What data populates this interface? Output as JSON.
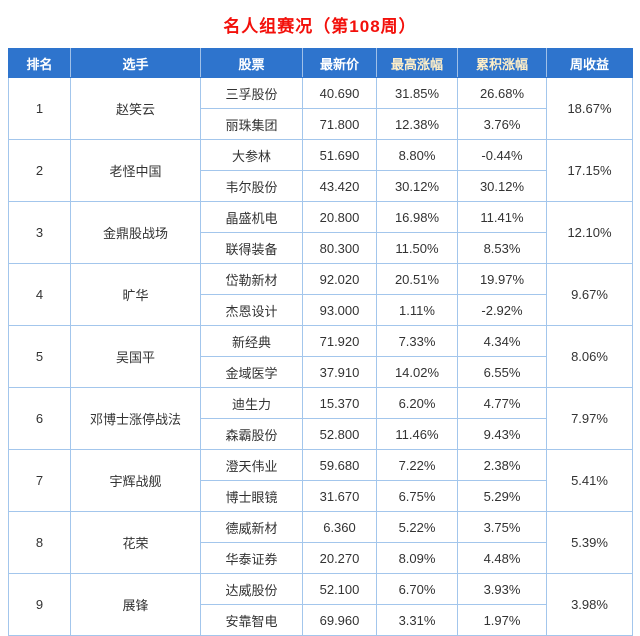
{
  "colors": {
    "title": "#f3100b",
    "header_bg": "#2e74cd",
    "header_text": "#ffffff",
    "header_text_highlight": "#fdeec8",
    "border": "#a3c6ec",
    "link_blue": "#2d6cb5",
    "price_text": "#333333",
    "percent_red": "#e23a3c"
  },
  "chart_data": {
    "type": "table",
    "title": "名人组赛况（第108周）",
    "headers": [
      "排名",
      "选手",
      "股票",
      "最新价",
      "最高涨幅",
      "累积涨幅",
      "周收益"
    ],
    "highlight_header_columns": [
      4,
      5
    ],
    "players": [
      {
        "rank": "1",
        "name": "赵笑云",
        "weekly_return": "18.67%",
        "stocks": [
          {
            "name": "三孚股份",
            "price": "40.690",
            "max_gain": "31.85%",
            "cum_gain": "26.68%"
          },
          {
            "name": "丽珠集团",
            "price": "71.800",
            "max_gain": "12.38%",
            "cum_gain": "3.76%"
          }
        ]
      },
      {
        "rank": "2",
        "name": "老怪中国",
        "weekly_return": "17.15%",
        "stocks": [
          {
            "name": "大参林",
            "price": "51.690",
            "max_gain": "8.80%",
            "cum_gain": "-0.44%"
          },
          {
            "name": "韦尔股份",
            "price": "43.420",
            "max_gain": "30.12%",
            "cum_gain": "30.12%"
          }
        ]
      },
      {
        "rank": "3",
        "name": "金鼎股战场",
        "weekly_return": "12.10%",
        "stocks": [
          {
            "name": "晶盛机电",
            "price": "20.800",
            "max_gain": "16.98%",
            "cum_gain": "11.41%"
          },
          {
            "name": "联得装备",
            "price": "80.300",
            "max_gain": "11.50%",
            "cum_gain": "8.53%"
          }
        ]
      },
      {
        "rank": "4",
        "name": "旷华",
        "weekly_return": "9.67%",
        "stocks": [
          {
            "name": "岱勒新材",
            "price": "92.020",
            "max_gain": "20.51%",
            "cum_gain": "19.97%"
          },
          {
            "name": "杰恩设计",
            "price": "93.000",
            "max_gain": "1.11%",
            "cum_gain": "-2.92%"
          }
        ]
      },
      {
        "rank": "5",
        "name": "吴国平",
        "weekly_return": "8.06%",
        "stocks": [
          {
            "name": "新经典",
            "price": "71.920",
            "max_gain": "7.33%",
            "cum_gain": "4.34%"
          },
          {
            "name": "金域医学",
            "price": "37.910",
            "max_gain": "14.02%",
            "cum_gain": "6.55%"
          }
        ]
      },
      {
        "rank": "6",
        "name": "邓博士涨停战法",
        "weekly_return": "7.97%",
        "stocks": [
          {
            "name": "迪生力",
            "price": "15.370",
            "max_gain": "6.20%",
            "cum_gain": "4.77%"
          },
          {
            "name": "森霸股份",
            "price": "52.800",
            "max_gain": "11.46%",
            "cum_gain": "9.43%"
          }
        ]
      },
      {
        "rank": "7",
        "name": "宇辉战舰",
        "weekly_return": "5.41%",
        "stocks": [
          {
            "name": "澄天伟业",
            "price": "59.680",
            "max_gain": "7.22%",
            "cum_gain": "2.38%"
          },
          {
            "name": "博士眼镜",
            "price": "31.670",
            "max_gain": "6.75%",
            "cum_gain": "5.29%"
          }
        ]
      },
      {
        "rank": "8",
        "name": "花荣",
        "weekly_return": "5.39%",
        "stocks": [
          {
            "name": "德威新材",
            "price": "6.360",
            "max_gain": "5.22%",
            "cum_gain": "3.75%"
          },
          {
            "name": "华泰证券",
            "price": "20.270",
            "max_gain": "8.09%",
            "cum_gain": "4.48%"
          }
        ]
      },
      {
        "rank": "9",
        "name": "展锋",
        "weekly_return": "3.98%",
        "stocks": [
          {
            "name": "达威股份",
            "price": "52.100",
            "max_gain": "6.70%",
            "cum_gain": "3.93%"
          },
          {
            "name": "安靠智电",
            "price": "69.960",
            "max_gain": "3.31%",
            "cum_gain": "1.97%"
          }
        ]
      }
    ]
  }
}
